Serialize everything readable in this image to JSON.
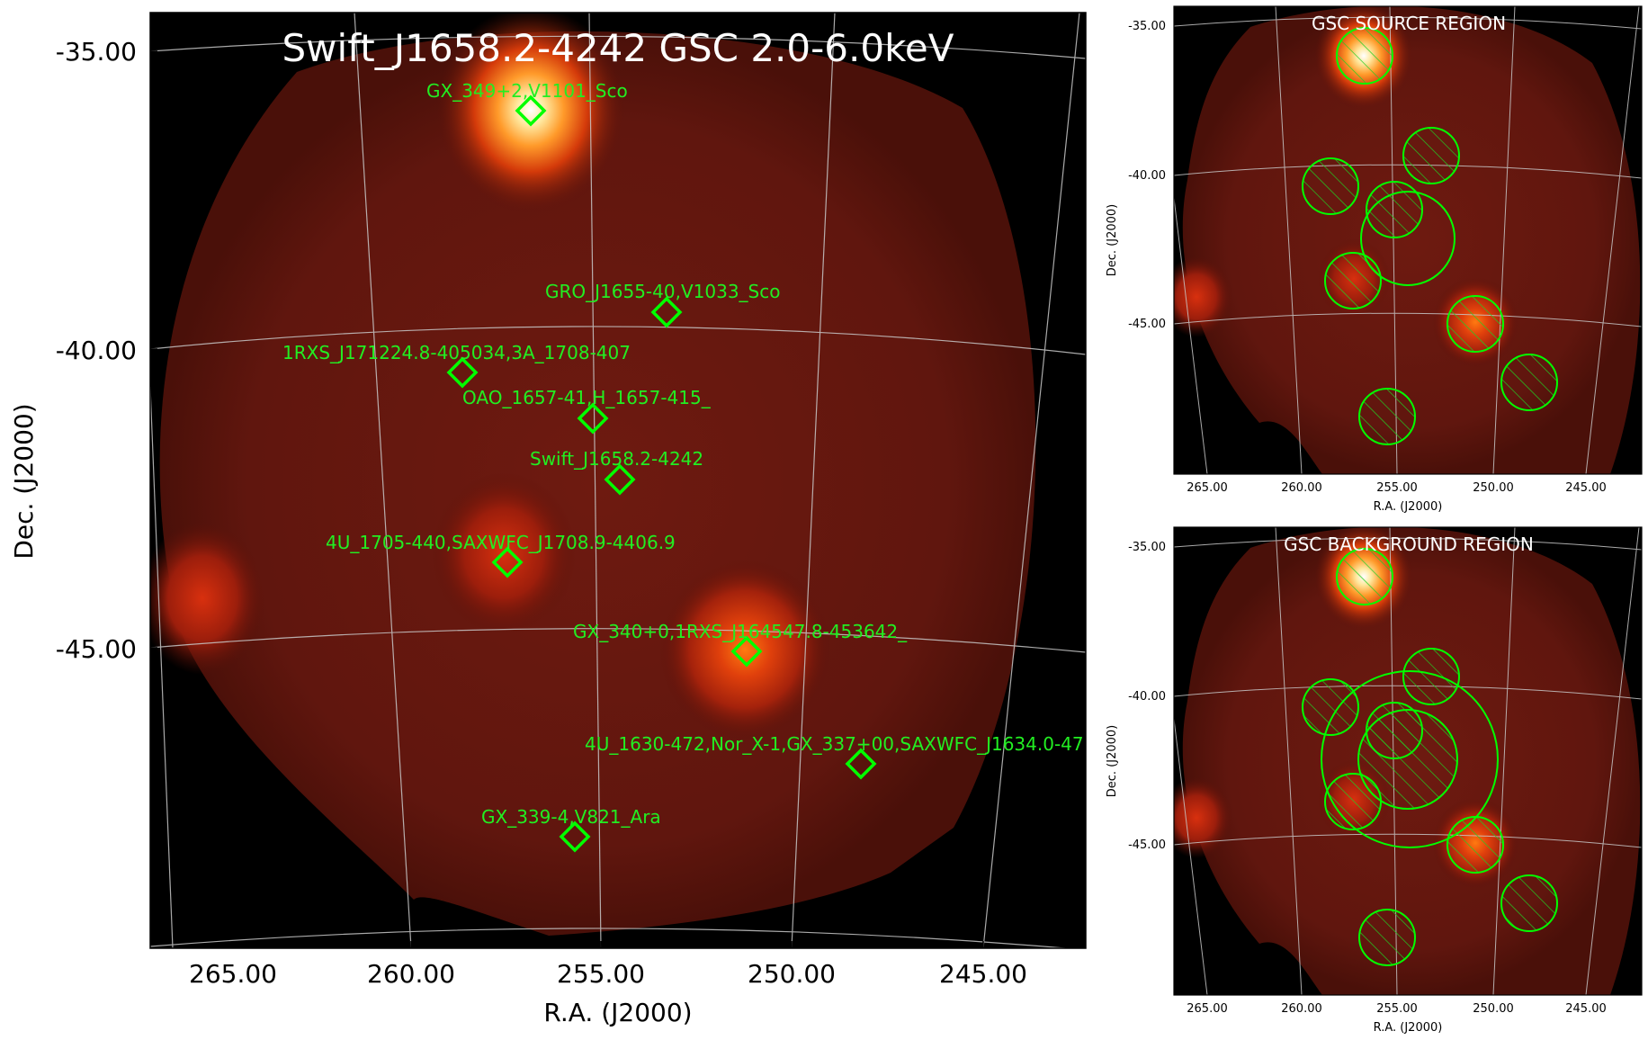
{
  "main": {
    "title": "Swift_J1658.2-4242 GSC 2.0-6.0keV",
    "xlabel": "R.A. (J2000)",
    "ylabel": "Dec. (J2000)",
    "yticks": [
      "-35.00",
      "-40.00",
      "-45.00"
    ],
    "xticks": [
      "265.00",
      "260.00",
      "255.00",
      "250.00",
      "245.00"
    ],
    "sources": [
      {
        "label": "GX_349+2,V1101_Sco"
      },
      {
        "label": "GRO_J1655-40,V1033_Sco"
      },
      {
        "label": "1RXS_J171224.8-405034,3A_1708-407"
      },
      {
        "label": "OAO_1657-41,H_1657-415_"
      },
      {
        "label": "Swift_J1658.2-4242"
      },
      {
        "label": "4U_1705-440,SAXWFC_J1708.9-4406.9"
      },
      {
        "label": "GX_340+0,1RXS_J164547.8-453642_"
      },
      {
        "label": "4U_1630-472,Nor_X-1,GX_337+00,SAXWFC_J1634.0-47"
      },
      {
        "label": "GX_339-4,V821_Ara"
      }
    ]
  },
  "source_panel": {
    "title": "GSC SOURCE REGION",
    "xlabel": "R.A. (J2000)",
    "ylabel": "Dec. (J2000)",
    "yticks": [
      "-35.00",
      "-40.00",
      "-45.00"
    ],
    "xticks": [
      "265.00",
      "260.00",
      "255.00",
      "250.00",
      "245.00"
    ]
  },
  "background_panel": {
    "title": "GSC BACKGROUND REGION",
    "xlabel": "R.A. (J2000)",
    "ylabel": "Dec. (J2000)",
    "yticks": [
      "-35.00",
      "-40.00",
      "-45.00"
    ],
    "xticks": [
      "265.00",
      "260.00",
      "255.00",
      "250.00",
      "245.00"
    ]
  },
  "colors": {
    "marker": "#00ff00",
    "label": "#22ee22",
    "grid": "#bbbbbb",
    "background": "#000000"
  }
}
